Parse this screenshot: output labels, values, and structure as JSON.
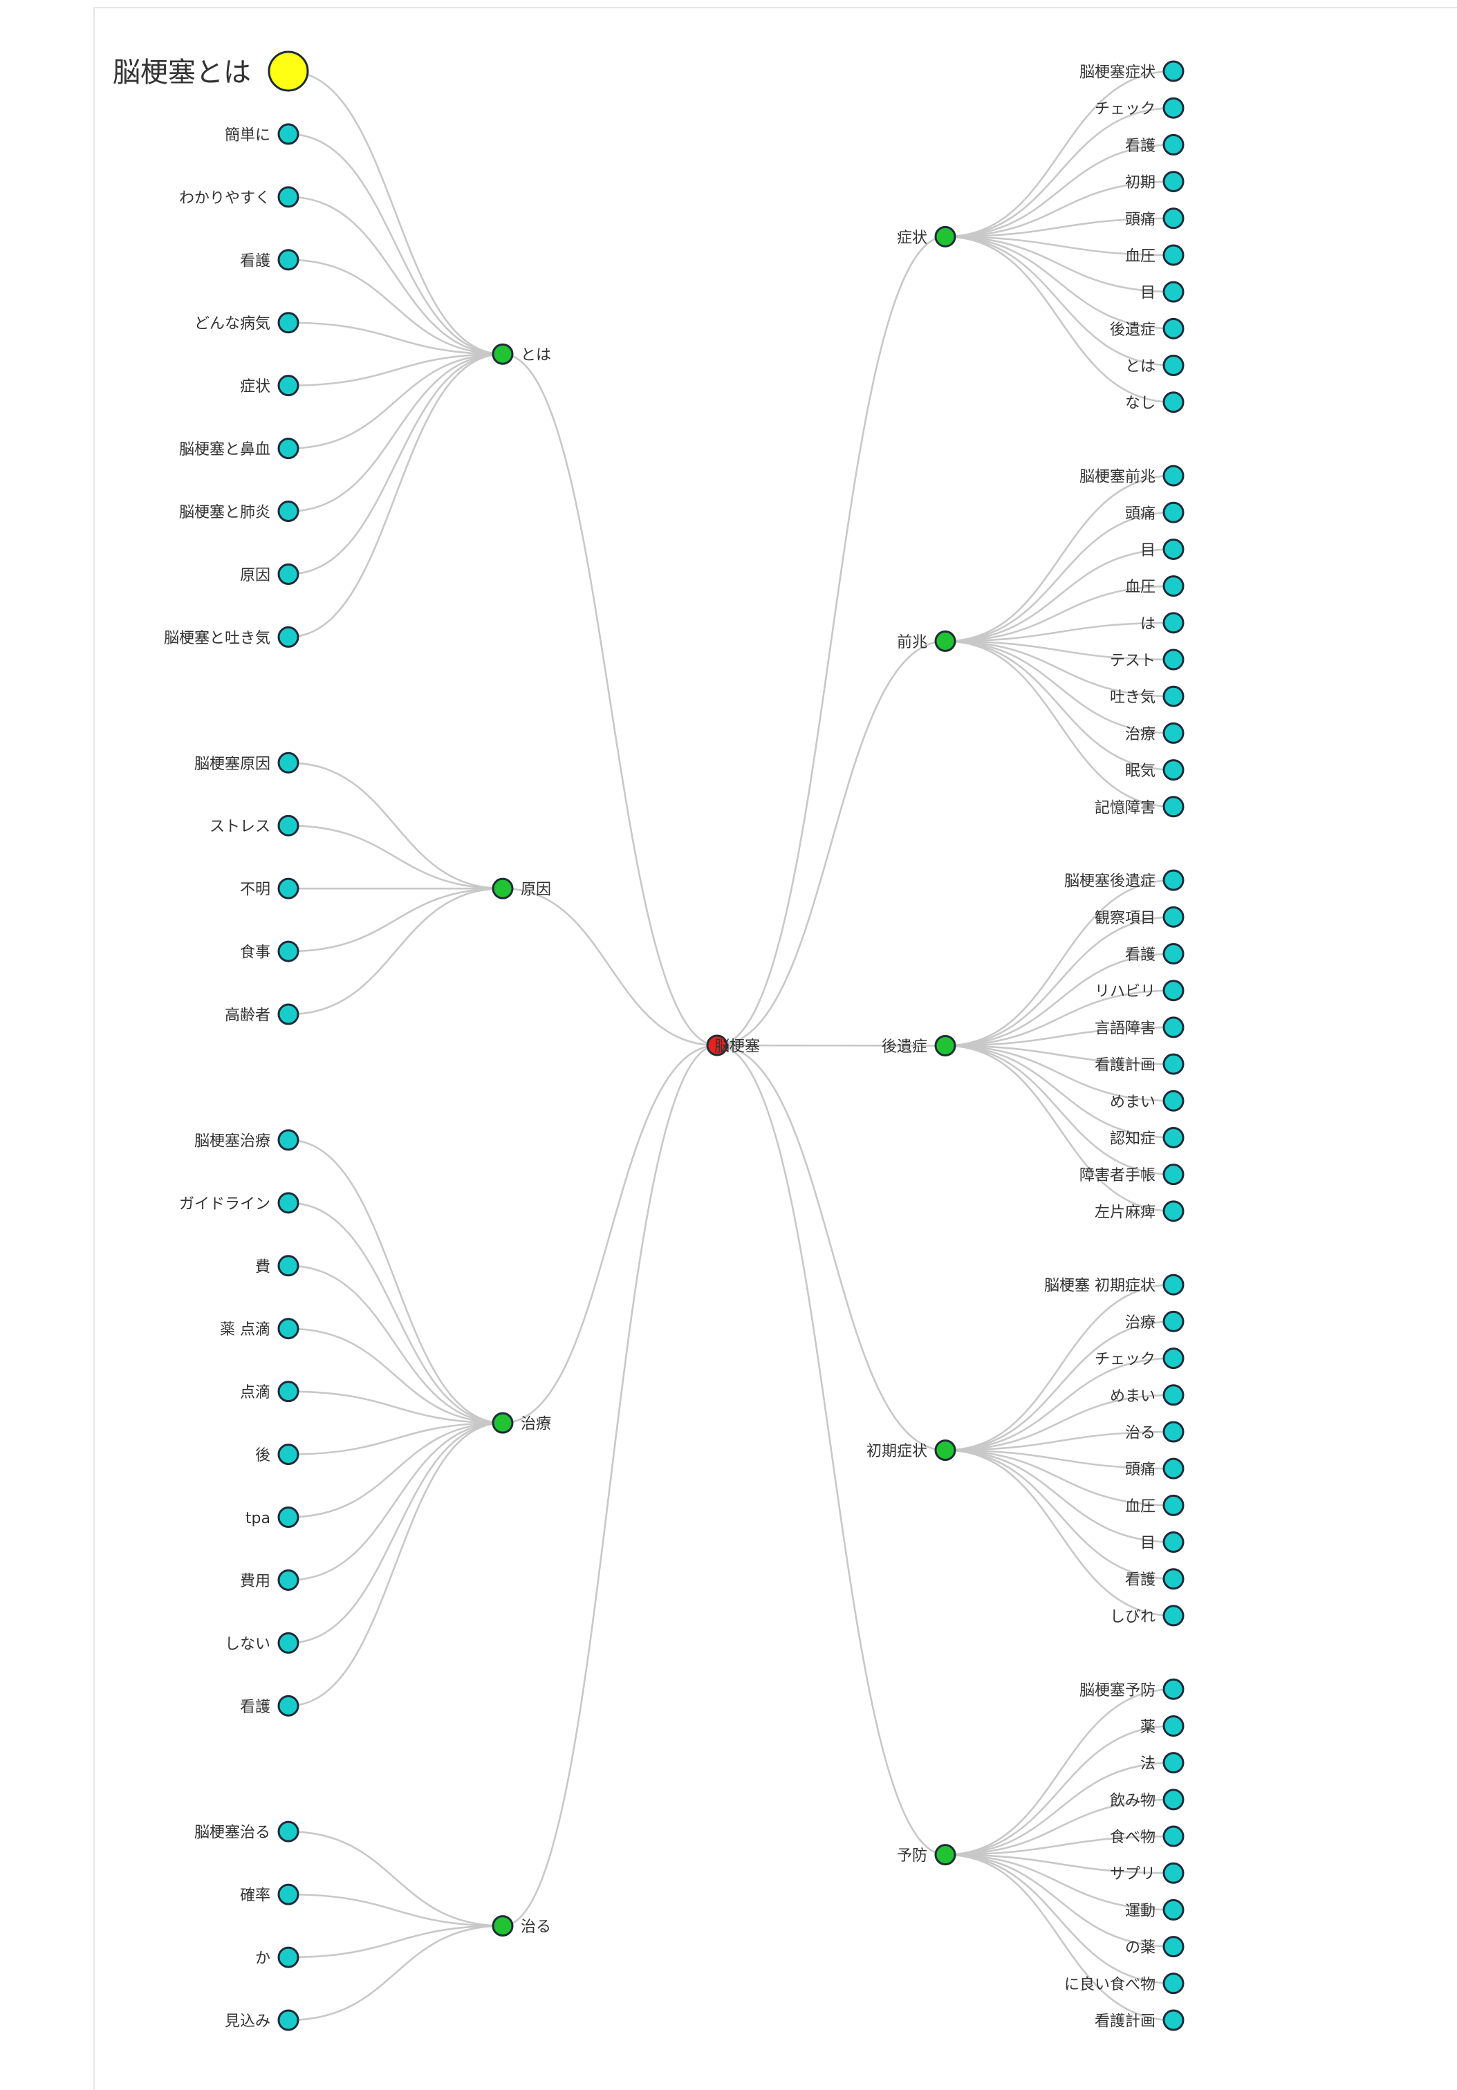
{
  "colors": {
    "root": "#e8211e",
    "category": "#21c332",
    "leaf": "#19cccc",
    "highlight_fill": "#ffff14",
    "highlight_stroke": "#e31a1a",
    "link": "#c8c8c8",
    "node_stroke": "#1e2b38"
  },
  "tree": {
    "root": "脳梗塞",
    "left": [
      {
        "label": "とは",
        "highlight_child": 0,
        "children": [
          "脳梗塞とは",
          "簡単に",
          "わかりやすく",
          "看護",
          "どんな病気",
          "症状",
          "脳梗塞と鼻血",
          "脳梗塞と肺炎",
          "原因",
          "脳梗塞と吐き気"
        ]
      },
      {
        "label": "原因",
        "children": [
          "脳梗塞原因",
          "ストレス",
          "不明",
          "食事",
          "高齢者"
        ]
      },
      {
        "label": "治療",
        "children": [
          "脳梗塞治療",
          "ガイドライン",
          "費",
          "薬 点滴",
          "点滴",
          "後",
          "tpa",
          "費用",
          "しない",
          "看護"
        ]
      },
      {
        "label": "治る",
        "children": [
          "脳梗塞治る",
          "確率",
          "か",
          "見込み"
        ]
      }
    ],
    "right": [
      {
        "label": "症状",
        "children": [
          "脳梗塞症状",
          "チェック",
          "看護",
          "初期",
          "頭痛",
          "血圧",
          "目",
          "後遺症",
          "とは",
          "なし"
        ]
      },
      {
        "label": "前兆",
        "children": [
          "脳梗塞前兆",
          "頭痛",
          "目",
          "血圧",
          "は",
          "テスト",
          "吐き気",
          "治療",
          "眠気",
          "記憶障害"
        ]
      },
      {
        "label": "後遺症",
        "children": [
          "脳梗塞後遺症",
          "観察項目",
          "看護",
          "リハビリ",
          "言語障害",
          "看護計画",
          "めまい",
          "認知症",
          "障害者手帳",
          "左片麻痺"
        ]
      },
      {
        "label": "初期症状",
        "children": [
          "脳梗塞 初期症状",
          "治療",
          "チェック",
          "めまい",
          "治る",
          "頭痛",
          "血圧",
          "目",
          "看護",
          "しびれ"
        ]
      },
      {
        "label": "予防",
        "children": [
          "脳梗塞予防",
          "薬",
          "法",
          "飲み物",
          "食べ物",
          "サプリ",
          "運動",
          "の薬",
          "に良い食べ物",
          "看護計画"
        ]
      }
    ]
  }
}
